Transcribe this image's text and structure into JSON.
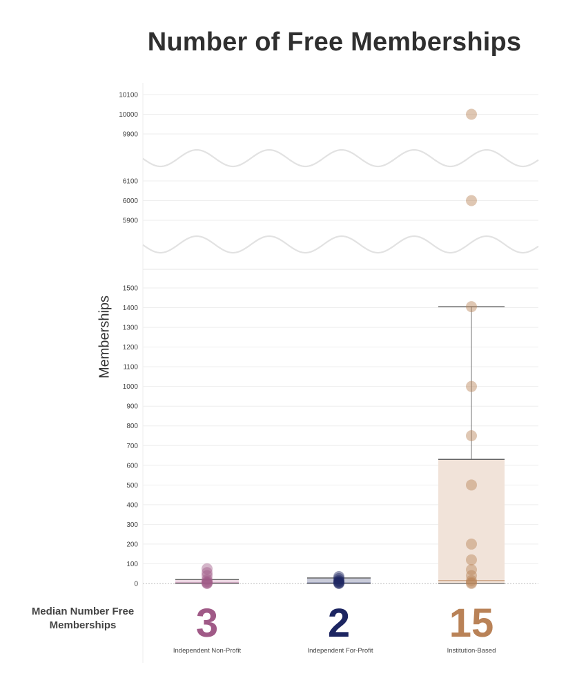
{
  "chart_data": {
    "type": "boxplot",
    "title": "Number of Free Memberships",
    "ylabel": "Memberships",
    "xlabel": "",
    "y_axis_segments": [
      {
        "ylim": [
          0,
          1500
        ],
        "ticks": [
          0,
          100,
          200,
          300,
          400,
          500,
          600,
          700,
          800,
          900,
          1000,
          1100,
          1200,
          1300,
          1400,
          1500
        ]
      },
      {
        "ylim": [
          5900,
          6100
        ],
        "ticks": [
          5900,
          6000,
          6100
        ]
      },
      {
        "ylim": [
          9900,
          10100
        ],
        "ticks": [
          9900,
          10000,
          10100
        ]
      }
    ],
    "axis_breaks": 2,
    "grid": true,
    "categories": [
      "Independent Non-Profit",
      "Independent For-Profit",
      "Institution-Based"
    ],
    "series": [
      {
        "category": "Independent Non-Profit",
        "color": "#a05a87",
        "box_fill": "#ecd7e3",
        "q1": 0,
        "median": 3,
        "q3": 20,
        "whisker_low": 0,
        "whisker_high": 20,
        "points": [
          0,
          2,
          5,
          10,
          20,
          40,
          55,
          75
        ]
      },
      {
        "category": "Independent For-Profit",
        "color": "#1c2561",
        "box_fill": "#c9cbd9",
        "q1": 0,
        "median": 2,
        "q3": 28,
        "whisker_low": 0,
        "whisker_high": 28,
        "points": [
          0,
          2,
          5,
          10,
          15,
          25,
          35
        ]
      },
      {
        "category": "Institution-Based",
        "color": "#b98257",
        "box_fill": "#f1e3d9",
        "q1": 0,
        "median": 15,
        "q3": 630,
        "whisker_low": 0,
        "whisker_high": 1405,
        "points": [
          0,
          5,
          15,
          40,
          70,
          120,
          200,
          500,
          750,
          1000,
          1405,
          6000,
          10000
        ]
      }
    ],
    "medians_panel": {
      "title": "Median Number Free Memberships",
      "values": [
        {
          "category": "Independent Non-Profit",
          "value": "3",
          "color": "#a05a87"
        },
        {
          "category": "Independent For-Profit",
          "value": "2",
          "color": "#1c2561"
        },
        {
          "category": "Institution-Based",
          "value": "15",
          "color": "#b98257"
        }
      ]
    }
  }
}
